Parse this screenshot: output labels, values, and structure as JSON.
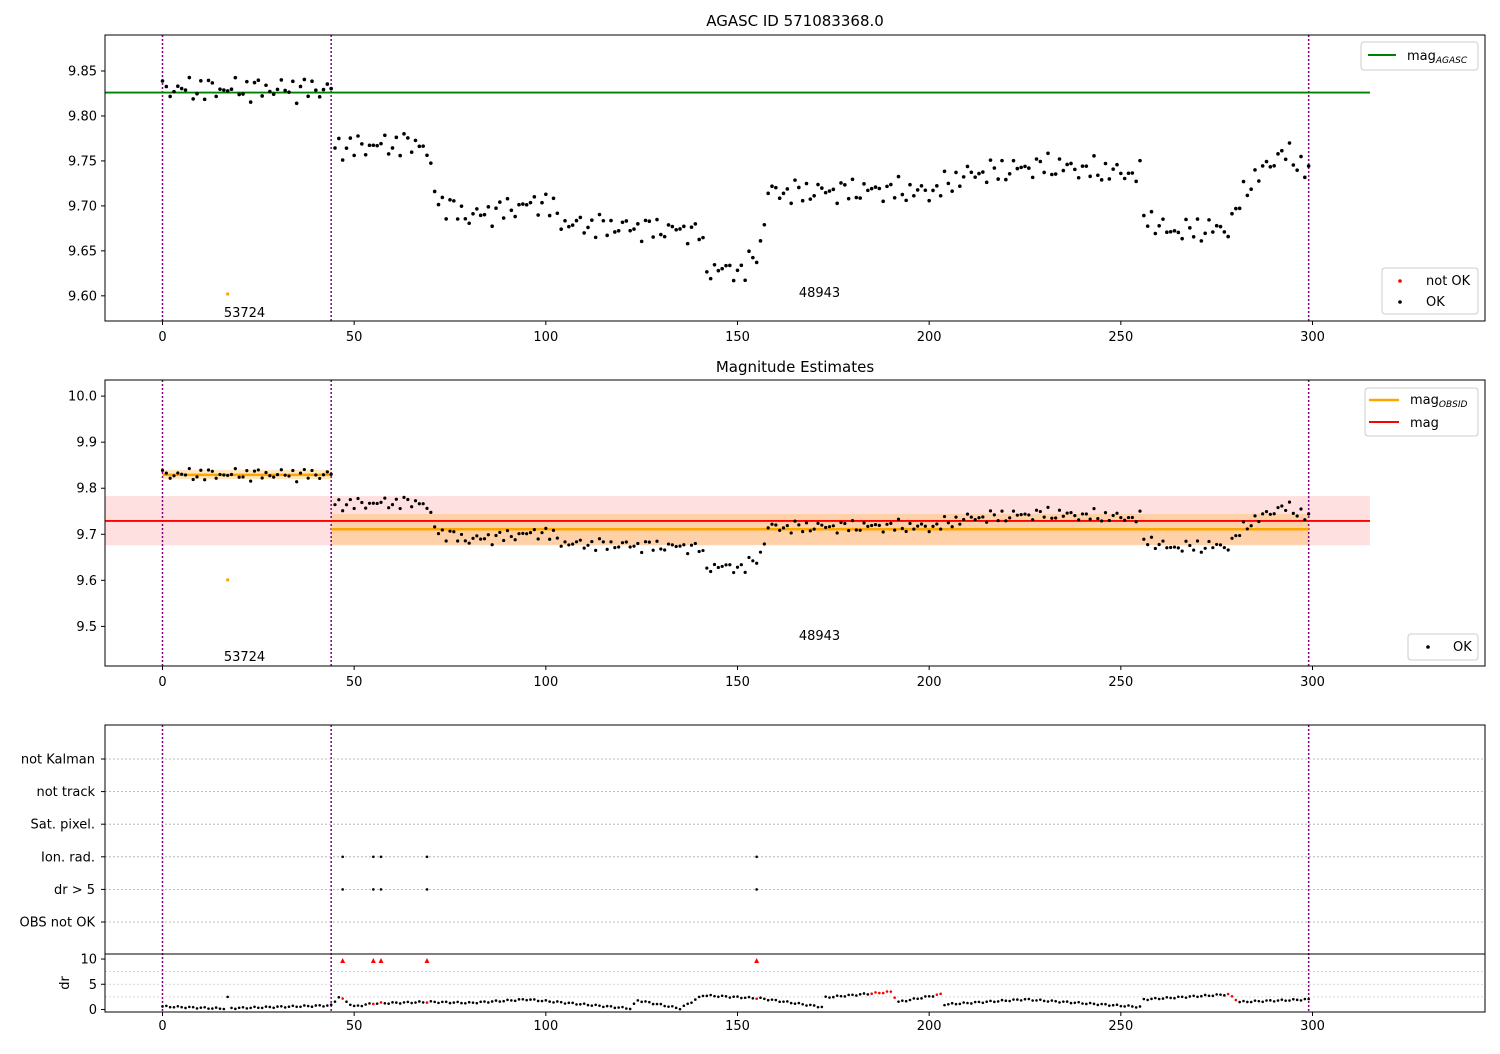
{
  "chart_data": [
    {
      "type": "scatter",
      "title": "AGASC ID 571083368.0",
      "xlim": [
        -15,
        345
      ],
      "ylim": [
        9.572,
        9.89
      ],
      "xticks": [
        0,
        50,
        100,
        150,
        200,
        250,
        300
      ],
      "yticks": [
        9.6,
        9.65,
        9.7,
        9.75,
        9.8,
        9.85
      ],
      "ytick_labels": [
        "9.60",
        "9.65",
        "9.70",
        "9.75",
        "9.80",
        "9.85"
      ],
      "vlines": [
        0,
        44,
        299
      ],
      "hline": {
        "label": "mag",
        "label_sub": "AGASC",
        "y": 9.826,
        "x": [
          -15,
          315
        ],
        "color": "#008000"
      },
      "annotations": [
        {
          "text": "53724",
          "x": 16,
          "y": 9.582
        },
        {
          "text": "48943",
          "x": 166,
          "y": 9.604
        }
      ],
      "outliers": [
        {
          "x": 17,
          "y": 9.602
        }
      ],
      "legend_hline_position": "top-right",
      "legend_points_position": "lower-right",
      "legend_points": [
        {
          "label": "not OK",
          "color": "#ff0000"
        },
        {
          "label": "OK",
          "color": "#000000"
        }
      ]
    },
    {
      "type": "scatter",
      "title": "Magnitude Estimates",
      "xlim": [
        -15,
        345
      ],
      "ylim": [
        9.414,
        10.035
      ],
      "xticks": [
        0,
        50,
        100,
        150,
        200,
        250,
        300
      ],
      "yticks": [
        9.5,
        9.6,
        9.7,
        9.8,
        9.9,
        10.0
      ],
      "ytick_labels": [
        "9.5",
        "9.6",
        "9.7",
        "9.8",
        "9.9",
        "10.0"
      ],
      "vlines": [
        0,
        44,
        299
      ],
      "mag_band": {
        "y": 9.729,
        "low": 9.676,
        "high": 9.783,
        "x": [
          -15,
          315
        ],
        "color": "#ff0000"
      },
      "obsid_segments": [
        {
          "x": [
            0,
            44
          ],
          "y": 9.829,
          "low": 9.82,
          "high": 9.84
        },
        {
          "x": [
            44,
            299
          ],
          "y": 9.711,
          "low": 9.677,
          "high": 9.744
        }
      ],
      "annotations": [
        {
          "text": "53724",
          "x": 16,
          "y": 9.436
        },
        {
          "text": "48943",
          "x": 166,
          "y": 9.481
        }
      ],
      "outliers": [
        {
          "x": 17,
          "y": 9.601
        }
      ],
      "legend_lines": [
        {
          "label": "mag",
          "label_sub": "OBSID",
          "color": "#ffa500"
        },
        {
          "label": "mag",
          "label_sub": "",
          "color": "#ff0000"
        }
      ],
      "legend_lines_position": "top-right",
      "legend_points": [
        {
          "label": "OK",
          "color": "#000000"
        }
      ],
      "legend_points_position": "lower-right"
    },
    {
      "type": "scatter",
      "xlim": [
        -15,
        345
      ],
      "flag_categories": [
        "not Kalman",
        "not track",
        "Sat. pixel.",
        "Ion. rad.",
        "dr > 5",
        "OBS not OK"
      ],
      "flags": {
        "Ion. rad.": [
          47,
          55,
          57,
          69,
          155
        ],
        "dr > 5": [
          47,
          55,
          57,
          69,
          155
        ]
      },
      "dr": {
        "ylabel": "dr",
        "ylim": [
          -0.5,
          11
        ],
        "yticks": [
          0,
          5,
          10
        ],
        "xticks": [
          0,
          50,
          100,
          150,
          200,
          250,
          300
        ],
        "highlight": [
          47,
          55,
          57,
          69,
          155
        ],
        "dr_red_points": [
          47,
          55,
          57,
          69,
          155,
          185,
          186,
          187,
          188,
          189,
          190,
          191,
          202,
          203,
          278,
          279,
          280
        ]
      },
      "vlines": [
        0,
        44,
        299
      ]
    }
  ]
}
